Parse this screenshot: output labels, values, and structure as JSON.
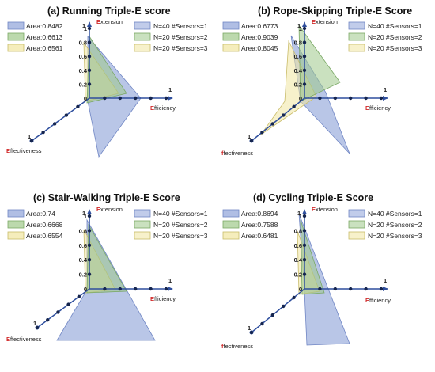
{
  "chart_data": [
    {
      "type": "area",
      "title": "(a) Running Triple-E score",
      "axes": {
        "extension": "Extension",
        "efficiency": "Efficiency",
        "effectiveness": "Effectiveness"
      },
      "y_ticks": [
        "1",
        "0.8",
        "0.6",
        "0.4",
        "0.2",
        "0"
      ],
      "axis_end_labels": [
        "1",
        "1",
        "1"
      ],
      "area_legend": [
        "Area:0.8482",
        "Area:0.6613",
        "Area:0.6561"
      ],
      "series": [
        {
          "name": "N=40 #Sensors=1",
          "color": "#8ea3d8"
        },
        {
          "name": "N=20 #Sensors=2",
          "color": "#9fc98a"
        },
        {
          "name": "N=20 #Sensors=3",
          "color": "#f1e6a0"
        }
      ]
    },
    {
      "type": "area",
      "title": "(b) Rope-Skipping Triple-E Score",
      "axes": {
        "extension": "Extension",
        "efficiency": "Efficiency",
        "effectiveness": "ffectiveness"
      },
      "y_ticks": [
        "1",
        "0.8",
        "0.6",
        "0.4",
        "0.2",
        "0"
      ],
      "axis_end_labels": [
        "1",
        "1",
        "1"
      ],
      "area_legend": [
        "Area:0.6773",
        "Area:0.9039",
        "Area:0.8045"
      ],
      "series": [
        {
          "name": "N=40 #Sensors=1",
          "color": "#8ea3d8"
        },
        {
          "name": "N=20 #Sensors=2",
          "color": "#9fc98a"
        },
        {
          "name": "N=20 #Sensors=3",
          "color": "#f1e6a0"
        }
      ]
    },
    {
      "type": "area",
      "title": "(c) Stair-Walking Triple-E Score",
      "axes": {
        "extension": "Extension",
        "efficiency": "Efficiency",
        "effectiveness": "Effectiveness"
      },
      "y_ticks": [
        "1",
        "0.8",
        "0.6",
        "0.4",
        "0.2",
        "0"
      ],
      "axis_end_labels": [
        "1",
        "1",
        "1"
      ],
      "area_legend": [
        "Area:0.74",
        "Area:0.6668",
        "Area:0.6554"
      ],
      "series": [
        {
          "name": "N=40 #Sensors=1",
          "color": "#8ea3d8"
        },
        {
          "name": "N=20 #Sensors=2",
          "color": "#9fc98a"
        },
        {
          "name": "N=20 #Sensors=3",
          "color": "#f1e6a0"
        }
      ]
    },
    {
      "type": "area",
      "title": "(d) Cycling Triple-E Score",
      "axes": {
        "extension": "Extension",
        "efficiency": "Efficiency",
        "effectiveness": "ffectiveness"
      },
      "y_ticks": [
        "1",
        "0.8",
        "0.6",
        "0.4",
        "0.2",
        "0"
      ],
      "axis_end_labels": [
        "1",
        "1",
        "1"
      ],
      "area_legend": [
        "Area:0.8694",
        "Area:0.7588",
        "Area:0.6481"
      ],
      "series": [
        {
          "name": "N=40 #Sensors=1",
          "color": "#8ea3d8"
        },
        {
          "name": "N=20 #Sensors=2",
          "color": "#9fc98a"
        },
        {
          "name": "N=20 #Sensors=3",
          "color": "#f1e6a0"
        }
      ]
    }
  ]
}
